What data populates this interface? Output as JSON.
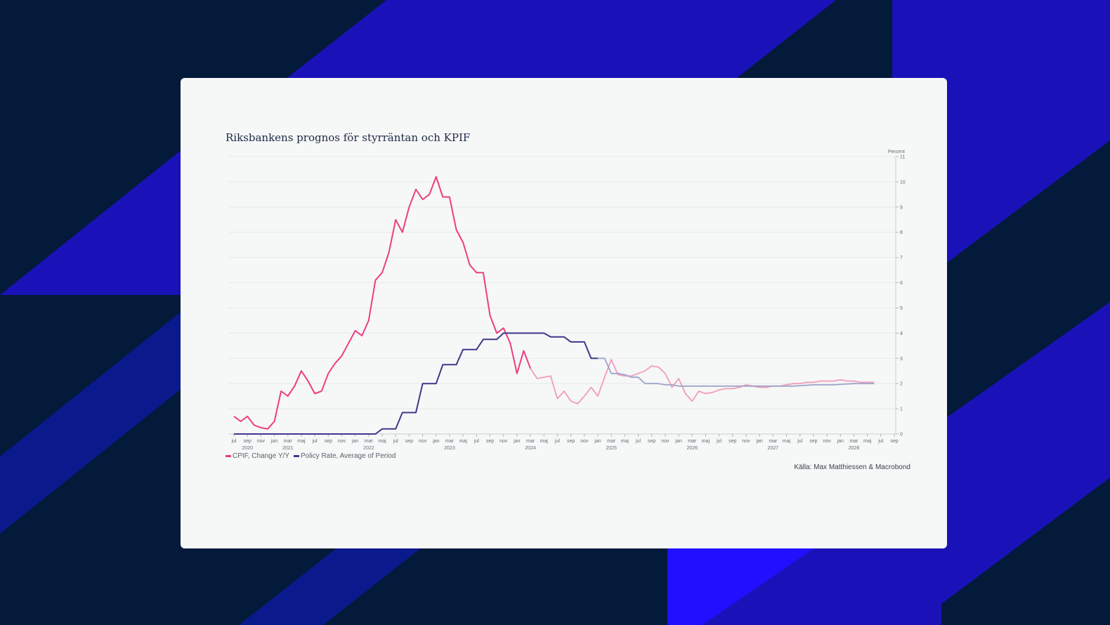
{
  "colors": {
    "background": "#031a3a",
    "stripe_blue": "#1a12b8",
    "stripe_bright": "#2010ff",
    "card": "#f6f7f7",
    "cpif": "#ee3d7f",
    "cpif_forecast": "#f29bbe",
    "policy": "#3b3a8c",
    "policy_forecast": "#9ea6c9"
  },
  "chart_data": {
    "type": "line",
    "title": "Riksbankens prognos för styrräntan och KPIF",
    "ylabel": "Percent",
    "ylim": [
      0,
      11
    ],
    "yticks": [
      "0",
      "1",
      "2",
      "3",
      "4",
      "5",
      "6",
      "7",
      "8",
      "9",
      "10",
      "11"
    ],
    "y_axis_position": "right",
    "grid": true,
    "legend_position": "bottom-left",
    "x_start": "2020-07",
    "x_end": "2028-09",
    "month_ticks": [
      "jul",
      "sep",
      "nov",
      "jan",
      "mar",
      "maj",
      "jul",
      "sep",
      "nov",
      "jan",
      "mar",
      "maj",
      "jul",
      "sep",
      "nov",
      "jan",
      "mar",
      "maj",
      "jul",
      "sep",
      "nov",
      "jan",
      "mar",
      "maj",
      "jul",
      "sep",
      "nov",
      "jan",
      "mar",
      "maj",
      "jul",
      "sep",
      "nov",
      "jan",
      "mar",
      "maj",
      "jul",
      "sep",
      "nov",
      "jan",
      "mar",
      "maj",
      "jul",
      "sep",
      "nov",
      "jan",
      "mar",
      "maj",
      "jul",
      "sep"
    ],
    "year_labels": [
      {
        "label": "2020",
        "at": "2020-09"
      },
      {
        "label": "2021",
        "at": "2021-03"
      },
      {
        "label": "2022",
        "at": "2022-03"
      },
      {
        "label": "2023",
        "at": "2023-03"
      },
      {
        "label": "2024",
        "at": "2024-03"
      },
      {
        "label": "2025",
        "at": "2025-03"
      },
      {
        "label": "2026",
        "at": "2026-03"
      },
      {
        "label": "2027",
        "at": "2027-03"
      },
      {
        "label": "2028",
        "at": "2028-03"
      }
    ],
    "series": [
      {
        "name": "CPIF, Change Y/Y",
        "color": "#ee3d7f",
        "forecast_color": "#f29bbe",
        "forecast_from": "2024-03",
        "points": [
          [
            "2020-07",
            0.7
          ],
          [
            "2020-08",
            0.5
          ],
          [
            "2020-09",
            0.7
          ],
          [
            "2020-10",
            0.35
          ],
          [
            "2020-11",
            0.25
          ],
          [
            "2020-12",
            0.2
          ],
          [
            "2021-01",
            0.5
          ],
          [
            "2021-02",
            1.7
          ],
          [
            "2021-03",
            1.5
          ],
          [
            "2021-04",
            1.9
          ],
          [
            "2021-05",
            2.5
          ],
          [
            "2021-06",
            2.1
          ],
          [
            "2021-07",
            1.6
          ],
          [
            "2021-08",
            1.7
          ],
          [
            "2021-09",
            2.4
          ],
          [
            "2021-10",
            2.8
          ],
          [
            "2021-11",
            3.1
          ],
          [
            "2021-12",
            3.6
          ],
          [
            "2022-01",
            4.1
          ],
          [
            "2022-02",
            3.9
          ],
          [
            "2022-03",
            4.5
          ],
          [
            "2022-04",
            6.1
          ],
          [
            "2022-05",
            6.4
          ],
          [
            "2022-06",
            7.2
          ],
          [
            "2022-07",
            8.5
          ],
          [
            "2022-08",
            8.0
          ],
          [
            "2022-09",
            9.0
          ],
          [
            "2022-10",
            9.7
          ],
          [
            "2022-11",
            9.3
          ],
          [
            "2022-12",
            9.5
          ],
          [
            "2023-01",
            10.2
          ],
          [
            "2023-02",
            9.4
          ],
          [
            "2023-03",
            9.4
          ],
          [
            "2023-04",
            8.1
          ],
          [
            "2023-05",
            7.6
          ],
          [
            "2023-06",
            6.7
          ],
          [
            "2023-07",
            6.4
          ],
          [
            "2023-08",
            6.4
          ],
          [
            "2023-09",
            4.7
          ],
          [
            "2023-10",
            4.0
          ],
          [
            "2023-11",
            4.2
          ],
          [
            "2023-12",
            3.6
          ],
          [
            "2024-01",
            2.4
          ],
          [
            "2024-02",
            3.3
          ],
          [
            "2024-03",
            2.6
          ],
          [
            "2024-04",
            2.2
          ],
          [
            "2024-05",
            2.25
          ],
          [
            "2024-06",
            2.3
          ],
          [
            "2024-07",
            1.4
          ],
          [
            "2024-08",
            1.7
          ],
          [
            "2024-09",
            1.3
          ],
          [
            "2024-10",
            1.2
          ],
          [
            "2024-11",
            1.5
          ],
          [
            "2024-12",
            1.85
          ],
          [
            "2025-01",
            1.5
          ],
          [
            "2025-02",
            2.25
          ],
          [
            "2025-03",
            2.95
          ],
          [
            "2025-04",
            2.35
          ],
          [
            "2025-05",
            2.3
          ],
          [
            "2025-06",
            2.3
          ],
          [
            "2025-07",
            2.4
          ],
          [
            "2025-08",
            2.5
          ],
          [
            "2025-09",
            2.7
          ],
          [
            "2025-10",
            2.65
          ],
          [
            "2025-11",
            2.4
          ],
          [
            "2025-12",
            1.85
          ],
          [
            "2026-01",
            2.2
          ],
          [
            "2026-02",
            1.6
          ],
          [
            "2026-03",
            1.3
          ],
          [
            "2026-04",
            1.7
          ],
          [
            "2026-05",
            1.6
          ],
          [
            "2026-06",
            1.65
          ],
          [
            "2026-07",
            1.75
          ],
          [
            "2026-08",
            1.8
          ],
          [
            "2026-09",
            1.8
          ],
          [
            "2026-10",
            1.85
          ],
          [
            "2026-11",
            1.95
          ],
          [
            "2026-12",
            1.9
          ],
          [
            "2027-01",
            1.85
          ],
          [
            "2027-02",
            1.85
          ],
          [
            "2027-03",
            1.9
          ],
          [
            "2027-04",
            1.9
          ],
          [
            "2027-05",
            1.95
          ],
          [
            "2027-06",
            2.0
          ],
          [
            "2027-07",
            2.0
          ],
          [
            "2027-08",
            2.05
          ],
          [
            "2027-09",
            2.05
          ],
          [
            "2027-10",
            2.1
          ],
          [
            "2027-11",
            2.1
          ],
          [
            "2027-12",
            2.1
          ],
          [
            "2028-01",
            2.15
          ],
          [
            "2028-02",
            2.1
          ],
          [
            "2028-03",
            2.1
          ],
          [
            "2028-04",
            2.05
          ],
          [
            "2028-05",
            2.05
          ],
          [
            "2028-06",
            2.05
          ]
        ]
      },
      {
        "name": "Policy Rate, Average of Period",
        "color": "#3b3a8c",
        "forecast_color": "#9ea6c9",
        "forecast_from": "2025-01",
        "points": [
          [
            "2020-07",
            0.0
          ],
          [
            "2022-04",
            0.0
          ],
          [
            "2022-05",
            0.2
          ],
          [
            "2022-07",
            0.2
          ],
          [
            "2022-08",
            0.85
          ],
          [
            "2022-09",
            0.85
          ],
          [
            "2022-10",
            0.85
          ],
          [
            "2022-11",
            2.0
          ],
          [
            "2022-12",
            2.0
          ],
          [
            "2023-01",
            2.0
          ],
          [
            "2023-02",
            2.75
          ],
          [
            "2023-03",
            2.75
          ],
          [
            "2023-04",
            2.75
          ],
          [
            "2023-05",
            3.35
          ],
          [
            "2023-06",
            3.35
          ],
          [
            "2023-07",
            3.35
          ],
          [
            "2023-08",
            3.75
          ],
          [
            "2023-09",
            3.75
          ],
          [
            "2023-10",
            3.75
          ],
          [
            "2023-11",
            4.0
          ],
          [
            "2024-05",
            4.0
          ],
          [
            "2024-06",
            3.85
          ],
          [
            "2024-07",
            3.85
          ],
          [
            "2024-08",
            3.85
          ],
          [
            "2024-09",
            3.65
          ],
          [
            "2024-10",
            3.65
          ],
          [
            "2024-11",
            3.65
          ],
          [
            "2024-12",
            3.0
          ],
          [
            "2025-01",
            3.0
          ],
          [
            "2025-02",
            3.0
          ],
          [
            "2025-03",
            2.4
          ],
          [
            "2025-04",
            2.4
          ],
          [
            "2025-05",
            2.35
          ],
          [
            "2025-06",
            2.25
          ],
          [
            "2025-07",
            2.25
          ],
          [
            "2025-08",
            2.0
          ],
          [
            "2025-09",
            2.0
          ],
          [
            "2025-10",
            2.0
          ],
          [
            "2025-11",
            1.95
          ],
          [
            "2025-12",
            1.95
          ],
          [
            "2026-01",
            1.9
          ],
          [
            "2026-06",
            1.9
          ],
          [
            "2026-12",
            1.9
          ],
          [
            "2027-06",
            1.9
          ],
          [
            "2027-09",
            1.95
          ],
          [
            "2027-12",
            1.95
          ],
          [
            "2028-03",
            2.0
          ],
          [
            "2028-06",
            2.0
          ]
        ]
      }
    ]
  },
  "legend": {
    "cpif_label": "CPIF, Change Y/Y",
    "policy_label": "Policy Rate, Average of Period"
  },
  "source": "Källa: Max Matthiessen & Macrobond"
}
